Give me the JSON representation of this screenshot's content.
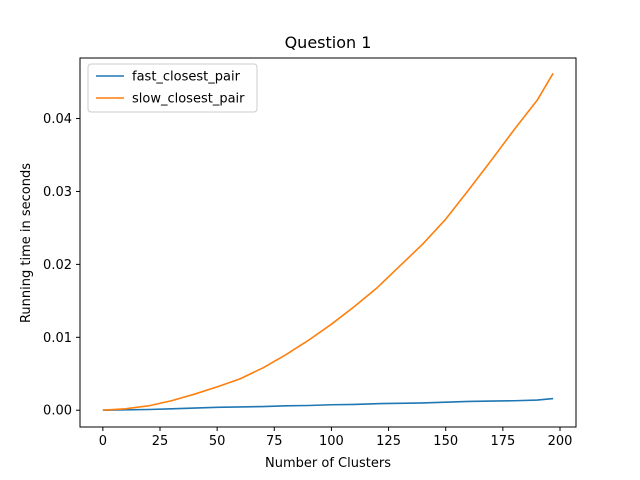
{
  "chart_data": {
    "type": "line",
    "title": "Question 1",
    "xlabel": "Number of Clusters",
    "ylabel": "Running time in seconds",
    "xlim": [
      -10,
      207
    ],
    "ylim": [
      -0.0023,
      0.0483
    ],
    "xticks": [
      0,
      25,
      50,
      75,
      100,
      125,
      150,
      175,
      200
    ],
    "xtick_labels": [
      "0",
      "25",
      "50",
      "75",
      "100",
      "125",
      "150",
      "175",
      "200"
    ],
    "yticks": [
      0.0,
      0.01,
      0.02,
      0.03,
      0.04
    ],
    "ytick_labels": [
      "0.00",
      "0.01",
      "0.02",
      "0.03",
      "0.04"
    ],
    "grid": false,
    "legend": "top-left",
    "x": [
      0,
      10,
      20,
      30,
      40,
      50,
      60,
      70,
      80,
      90,
      100,
      110,
      120,
      130,
      140,
      150,
      160,
      170,
      180,
      190,
      197
    ],
    "series": [
      {
        "name": "fast_closest_pair",
        "color": "#1f77b4",
        "values": [
          0.0,
          5e-05,
          0.0001,
          0.0002,
          0.0003,
          0.0004,
          0.00045,
          0.0005,
          0.0006,
          0.00065,
          0.00075,
          0.0008,
          0.0009,
          0.00095,
          0.001,
          0.0011,
          0.0012,
          0.00125,
          0.0013,
          0.0014,
          0.0016
        ]
      },
      {
        "name": "slow_closest_pair",
        "color": "#ff7f0e",
        "values": [
          0.0,
          0.0002,
          0.0006,
          0.0013,
          0.0022,
          0.0032,
          0.0043,
          0.0058,
          0.0076,
          0.0096,
          0.0118,
          0.0142,
          0.0168,
          0.0198,
          0.0228,
          0.0262,
          0.0302,
          0.0343,
          0.0385,
          0.0425,
          0.0462
        ]
      }
    ]
  }
}
